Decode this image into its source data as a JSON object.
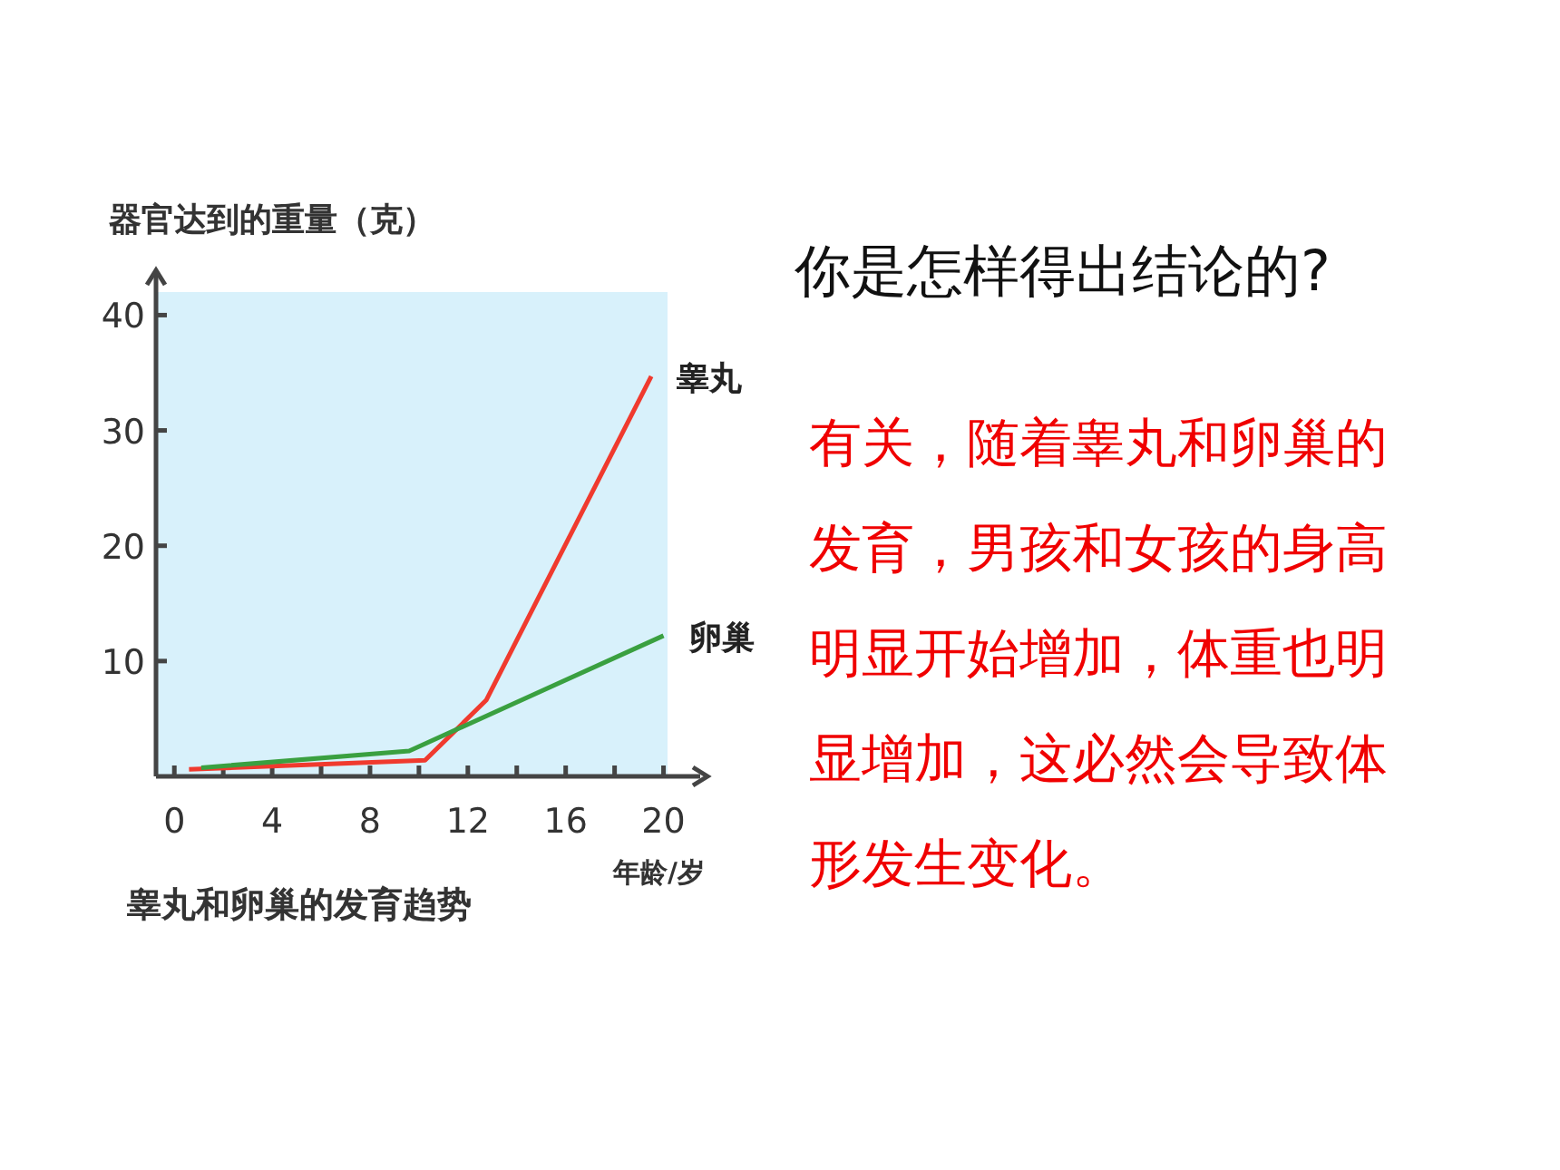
{
  "chart_data": {
    "type": "line",
    "title": "睾丸和卵巢的发育趋势",
    "ylabel": "器官达到的重量（克）",
    "xlabel": "年龄/岁",
    "series": [
      {
        "name": "睾丸",
        "color": "#f03a2e",
        "x": [
          0.6,
          10.25,
          12.75,
          19.5
        ],
        "values": [
          0.6,
          1.4,
          6.6,
          34.7
        ]
      },
      {
        "name": "卵巢",
        "color": "#3aa040",
        "x": [
          1.1,
          9.6,
          20
        ],
        "values": [
          0.75,
          2.2,
          12.2
        ]
      }
    ],
    "xlim": [
      -0.75,
      21.5
    ],
    "ylim": [
      0,
      42
    ],
    "xticks": [
      0,
      {
        "value": 2,
        "label": null
      },
      4,
      {
        "value": 6,
        "label": null
      },
      8,
      {
        "value": 10,
        "label": null
      },
      12,
      {
        "value": 14,
        "label": null
      },
      16,
      {
        "value": 18,
        "label": null
      },
      20
    ],
    "yticks": [
      10,
      20,
      30,
      40
    ],
    "grid": false,
    "legend": false,
    "marker": "none",
    "line_style": "solid",
    "annotations": [
      "你是怎样得出结论的?",
      "有关，随着睾丸和卵巢的发育，男孩和女孩的身高明显开始增加，体重也明显增加，这必然会导致体形发生变化。"
    ]
  }
}
